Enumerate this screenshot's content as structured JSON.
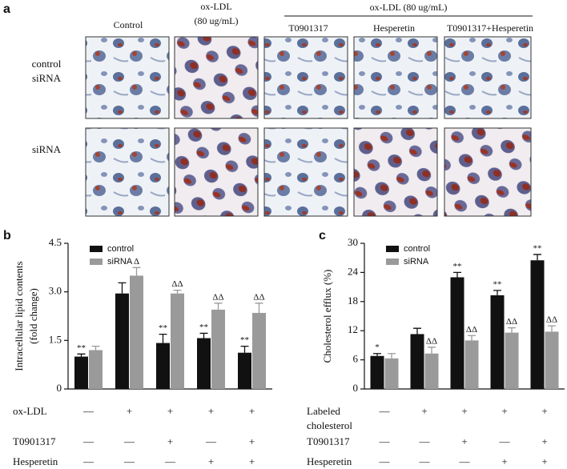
{
  "panel_a": {
    "letter": "a",
    "group_header": "ox-LDL (80 ug/mL)",
    "columns": [
      "Control",
      "ox-LDL\n(80 ug/mL)",
      "T0901317",
      "Hesperetin",
      "T0901317+Hesperetin"
    ],
    "rows": [
      "control\nsiRNA",
      "siRNA"
    ]
  },
  "chart_data": [
    {
      "type": "bar",
      "letter": "b",
      "y_label": "Intracellular lipid contents\n(fold change)",
      "categories": [
        null,
        null,
        null,
        null,
        null
      ],
      "ylim": [
        0,
        4.5
      ],
      "yticks": [
        0,
        1.5,
        {
          "value": 3,
          "label": "3.0"
        },
        4.5
      ],
      "grid": false,
      "legend": "top-left",
      "series": [
        {
          "name": "control",
          "color": "#111111",
          "values": [
            1.0,
            2.95,
            1.42,
            1.57,
            1.12
          ],
          "errors": [
            0.08,
            0.33,
            0.27,
            0.15,
            0.2
          ],
          "annotations": [
            "**",
            null,
            "**",
            "**",
            "**"
          ]
        },
        {
          "name": "siRNA",
          "color": "#9a9a9a",
          "values": [
            1.2,
            3.5,
            2.95,
            2.45,
            2.35
          ],
          "errors": [
            0.12,
            0.25,
            0.1,
            0.2,
            0.3
          ],
          "annotations": [
            null,
            "Δ",
            "ΔΔ",
            "ΔΔ",
            "ΔΔ"
          ]
        }
      ],
      "treatments": [
        {
          "label": "ox-LDL",
          "marks": [
            "—",
            "+",
            "+",
            "+",
            "+"
          ]
        },
        {
          "label": "T0901317",
          "marks": [
            "—",
            "—",
            "+",
            "—",
            "+"
          ]
        },
        {
          "label": "Hesperetin",
          "marks": [
            "—",
            "—",
            "—",
            "+",
            "+"
          ]
        }
      ]
    },
    {
      "type": "bar",
      "letter": "c",
      "y_label": "Cholesterol efflux (%)",
      "categories": [
        null,
        null,
        null,
        null,
        null
      ],
      "ylim": [
        0,
        30
      ],
      "yticks": [
        0,
        6,
        12,
        18,
        24,
        30
      ],
      "grid": false,
      "legend": "top-left",
      "series": [
        {
          "name": "control",
          "color": "#111111",
          "values": [
            6.8,
            11.3,
            23,
            19.3,
            26.5
          ],
          "errors": [
            0.5,
            1.2,
            1,
            1,
            1.2
          ],
          "annotations": [
            "*",
            null,
            "**",
            "**",
            "**"
          ]
        },
        {
          "name": "siRNA",
          "color": "#9a9a9a",
          "values": [
            6.3,
            7.3,
            10,
            11.6,
            11.8
          ],
          "errors": [
            1,
            1.3,
            1,
            1,
            1.2
          ],
          "annotations": [
            null,
            "ΔΔ",
            "ΔΔ",
            "ΔΔ",
            "ΔΔ"
          ]
        }
      ],
      "treatments": [
        {
          "label": "Labeled\ncholesterol",
          "marks": [
            "—",
            "+",
            "+",
            "+",
            "+"
          ]
        },
        {
          "label": "T0901317",
          "marks": [
            "—",
            "—",
            "+",
            "—",
            "+"
          ]
        },
        {
          "label": "Hesperetin",
          "marks": [
            "—",
            "—",
            "—",
            "+",
            "+"
          ]
        }
      ]
    }
  ]
}
